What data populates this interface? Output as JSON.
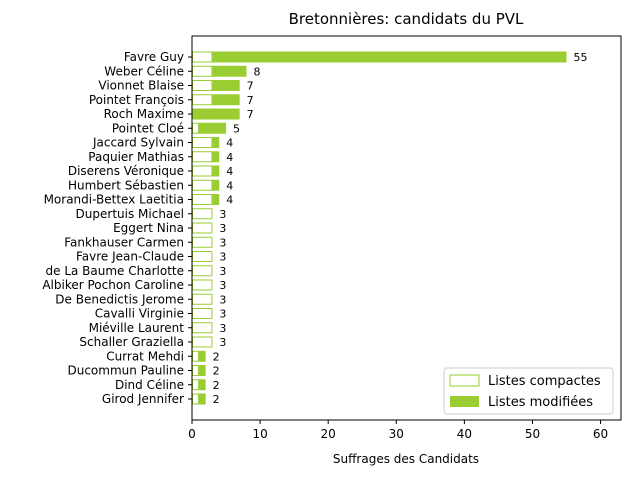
{
  "chart_data": {
    "type": "bar",
    "orientation": "horizontal",
    "stacked": true,
    "title": "Bretonnières: candidats du PVL",
    "xlabel": "Suffrages des Candidats",
    "ylabel": "",
    "xlim": [
      0,
      63
    ],
    "xticks": [
      0,
      10,
      20,
      30,
      40,
      50,
      60
    ],
    "grid": false,
    "legend_position": "lower-right",
    "color": "#9acd32",
    "categories": [
      "Favre Guy",
      "Weber Céline",
      "Vionnet Blaise",
      "Pointet François",
      "Roch Maxime",
      "Pointet Cloé",
      "Jaccard Sylvain",
      "Paquier Mathias",
      "Diserens Véronique",
      "Humbert Sébastien",
      "Morandi-Bettex Laetitia",
      "Dupertuis Michael",
      "Eggert Nina",
      "Fankhauser Carmen",
      "Favre Jean-Claude",
      "de La Baume Charlotte",
      "Albiker Pochon Caroline",
      "De Benedictis Jerome",
      "Cavalli Virginie",
      "Miéville Laurent",
      "Schaller Graziella",
      "Currat Mehdi",
      "Ducommun Pauline",
      "Dind Céline",
      "Girod Jennifer"
    ],
    "series": [
      {
        "name": "Listes compactes",
        "style": "outline",
        "values": [
          3,
          3,
          3,
          3,
          0,
          1,
          3,
          3,
          3,
          3,
          3,
          3,
          3,
          3,
          3,
          3,
          3,
          3,
          3,
          3,
          3,
          1,
          1,
          1,
          1
        ]
      },
      {
        "name": "Listes modifiées",
        "style": "filled",
        "values": [
          52,
          5,
          4,
          4,
          7,
          4,
          1,
          1,
          1,
          1,
          1,
          0,
          0,
          0,
          0,
          0,
          0,
          0,
          0,
          0,
          0,
          1,
          1,
          1,
          1
        ]
      }
    ],
    "totals": [
      55,
      8,
      7,
      7,
      7,
      5,
      4,
      4,
      4,
      4,
      4,
      3,
      3,
      3,
      3,
      3,
      3,
      3,
      3,
      3,
      3,
      2,
      2,
      2,
      2
    ]
  }
}
